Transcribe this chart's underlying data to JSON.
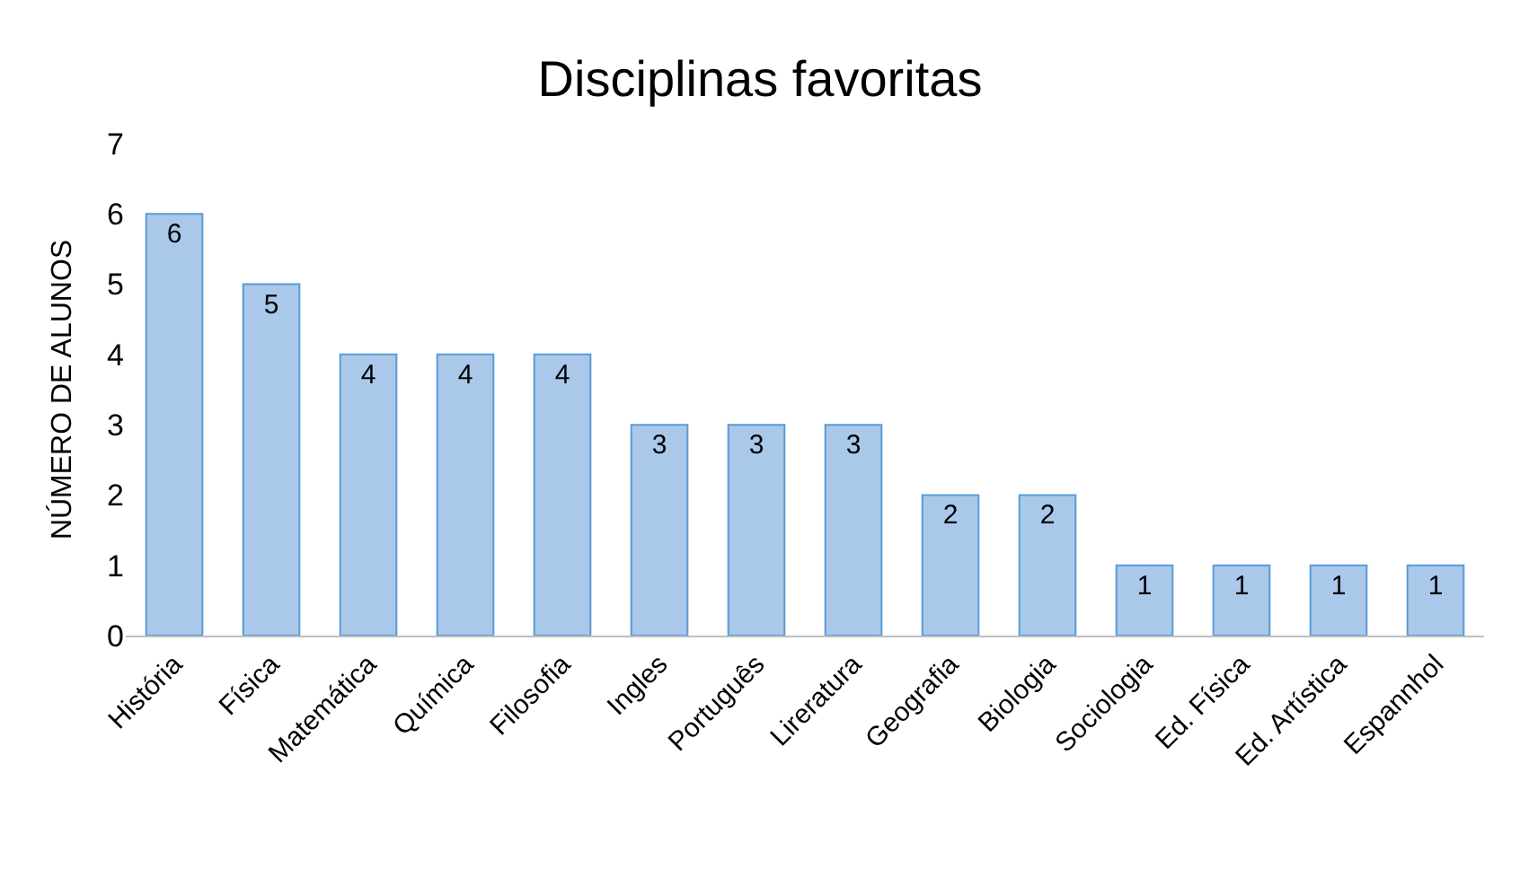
{
  "chart_data": {
    "type": "bar",
    "title": "Disciplinas favoritas",
    "ylabel": "NÚMERO DE ALUNOS",
    "categories": [
      "História",
      "Física",
      "Matemática",
      "Química",
      "Filosofia",
      "Ingles",
      "Português",
      "Lireratura",
      "Geografia",
      "Biologia",
      "Sociologia",
      "Ed. Física",
      "Ed. Artística",
      "Espannhol"
    ],
    "values": [
      6,
      5,
      4,
      4,
      4,
      3,
      3,
      3,
      2,
      2,
      1,
      1,
      1,
      1
    ],
    "color": "#a9c8ea",
    "ylim": [
      0,
      7
    ],
    "yticks": [
      0,
      1,
      2,
      3,
      4,
      5,
      6,
      7
    ],
    "data_labels": true,
    "legend": false
  }
}
